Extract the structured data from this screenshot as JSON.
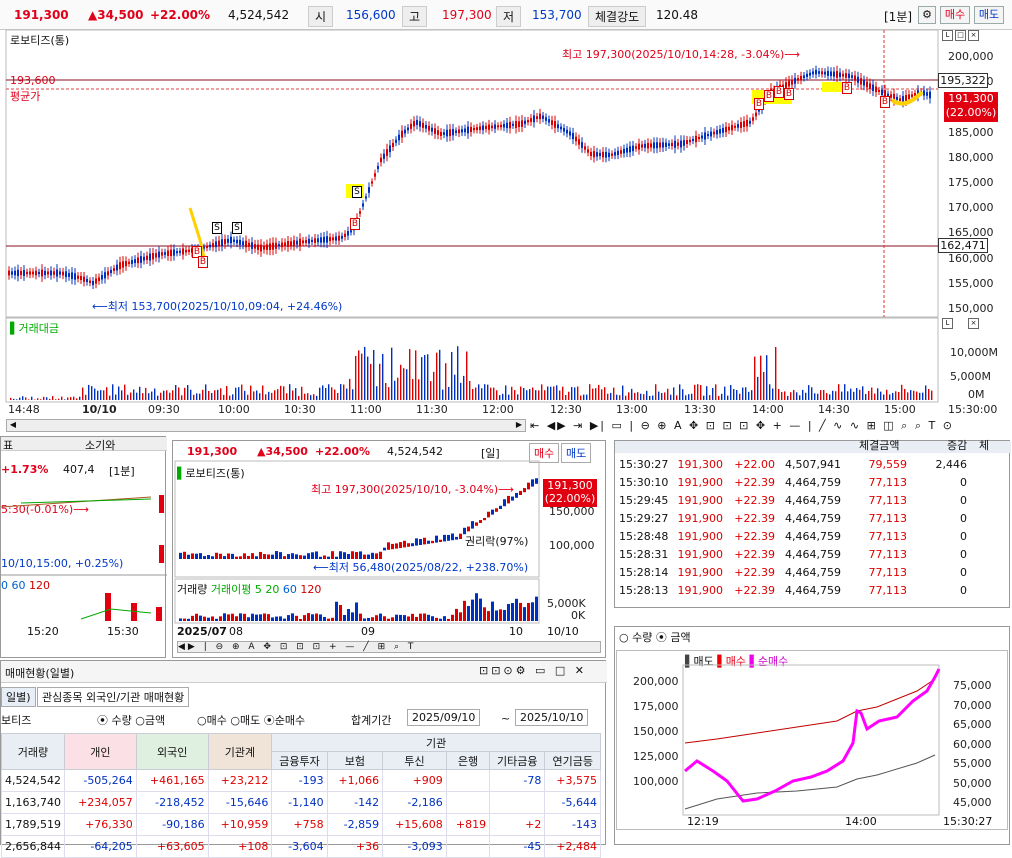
{
  "top": {
    "price": "191,300",
    "change": "▲34,500",
    "rate": "+22.00%",
    "volume": "4,524,542",
    "open_lbl": "시",
    "open": "156,600",
    "high_lbl": "고",
    "high": "197,300",
    "low_lbl": "저",
    "low": "153,700",
    "str_lbl": "체결강도",
    "str": "120.48",
    "interval": "[1분]",
    "buy": "매수",
    "sell": "매도"
  },
  "main": {
    "title": "로보티즈(통)",
    "avg_line": "193,600",
    "avg_label": "평균가",
    "high_note": "최고 197,300(2025/10/10,14:28, -3.04%)⟶",
    "low_note": "⟵최저 153,700(2025/10/10,09:04, +24.46%)",
    "price_tag_a": "195,322",
    "price_tag_b": "162,471",
    "current_a": "191,300",
    "current_b": "(22.00%)",
    "yticks": [
      "200,000",
      "195,000",
      "190,000",
      "185,000",
      "180,000",
      "175,000",
      "170,000",
      "165,000",
      "160,000",
      "155,000",
      "150,000"
    ],
    "vol_title": "거래대금",
    "vol_ticks": [
      "10,000M",
      "5,000M",
      "0M"
    ],
    "xticks": [
      "14:48",
      "10/10",
      "09:30",
      "10:00",
      "10:30",
      "11:00",
      "11:30",
      "12:00",
      "12:30",
      "13:00",
      "13:30",
      "14:00",
      "14:30",
      "15:00",
      "15:30:00"
    ]
  },
  "left_mini": {
    "rate": "+1.73%",
    "vol": "407,4",
    "interval": "[1분]",
    "note1": "5:30(-0.01%)⟶",
    "note2": "10/10,15:00, +0.25%)",
    "leg1": "60",
    "leg2": "120",
    "x1": "15:20",
    "x2": "15:30",
    "hdr1": "표",
    "hdr2": "소기와"
  },
  "daily": {
    "price": "191,300",
    "change": "▲34,500",
    "rate": "+22.00%",
    "volume": "4,524,542",
    "interval": "[일]",
    "buy": "매수",
    "sell": "매도",
    "title": "로보티즈(통)",
    "high_note": "최고 197,300(2025/10/10, -3.04%)⟶",
    "low_note": "⟵최저 56,480(2025/08/22, +238.70%)",
    "rights": "권리락(97%)",
    "cur_a": "191,300",
    "cur_b": "(22.00%)",
    "y1": "150,000",
    "y2": "100,000",
    "vol_title": "거래량",
    "vol_avg": "거래이평 5",
    "l1": "20",
    "l2": "60",
    "l3": "120",
    "vtick1": "5,000K",
    "vtick2": "0K",
    "x0": "2025/07",
    "x1": "08",
    "x2": "09",
    "x3": "10",
    "x4": "10/10"
  },
  "ticks": {
    "hdr": [
      "",
      "",
      "",
      "",
      "체결금액",
      "증감",
      "체"
    ],
    "rows": [
      [
        "15:30:27",
        "191,300",
        "+22.00",
        "4,507,941",
        "79,559",
        "2,446"
      ],
      [
        "15:30:10",
        "191,900",
        "+22.39",
        "4,464,759",
        "77,113",
        "0"
      ],
      [
        "15:29:45",
        "191,900",
        "+22.39",
        "4,464,759",
        "77,113",
        "0"
      ],
      [
        "15:29:27",
        "191,900",
        "+22.39",
        "4,464,759",
        "77,113",
        "0"
      ],
      [
        "15:28:48",
        "191,900",
        "+22.39",
        "4,464,759",
        "77,113",
        "0"
      ],
      [
        "15:28:31",
        "191,900",
        "+22.39",
        "4,464,759",
        "77,113",
        "0"
      ],
      [
        "15:28:14",
        "191,900",
        "+22.39",
        "4,464,759",
        "77,113",
        "0"
      ],
      [
        "15:28:13",
        "191,900",
        "+22.39",
        "4,464,759",
        "77,113",
        "0"
      ]
    ]
  },
  "invest": {
    "title": "매매현황(일별)",
    "tab1": "일별)",
    "tab2": "관심종목 외국인/기관 매매현황",
    "name": "보티즈",
    "r_qty": "수량",
    "r_amt": "금액",
    "r_buy": "매수",
    "r_sell": "매도",
    "r_net": "순매수",
    "period": "합계기간",
    "from": "2025/09/10",
    "to": "2025/10/10",
    "cols": [
      "거래량",
      "개인",
      "외국인",
      "기관계",
      "기관",
      "금융투자",
      "보험",
      "투신",
      "은행",
      "기타금융",
      "연기금등"
    ],
    "rows": [
      [
        "4,524,542",
        "-505,264",
        "+461,165",
        "+23,212",
        "-193",
        "+1,066",
        "+909",
        "",
        "-78",
        "+3,575"
      ],
      [
        "1,163,740",
        "+234,057",
        "-218,452",
        "-15,646",
        "-1,140",
        "-142",
        "-2,186",
        "",
        "",
        "-5,644"
      ],
      [
        "1,789,519",
        "+76,330",
        "-90,186",
        "+10,959",
        "+758",
        "-2,859",
        "+15,608",
        "+819",
        "+2",
        "-143"
      ],
      [
        "2,656,844",
        "-64,205",
        "+63,605",
        "+108",
        "-3,604",
        "+36",
        "-3,093",
        "",
        "-45",
        "+2,484"
      ]
    ]
  },
  "flow": {
    "r_qty": "수량",
    "r_amt": "금액",
    "leg_sell": "매도",
    "leg_buy": "매수",
    "leg_net": "순매수",
    "yl": [
      "200,000",
      "175,000",
      "150,000",
      "125,000",
      "100,000"
    ],
    "yr": [
      "75,000",
      "70,000",
      "65,000",
      "60,000",
      "55,000",
      "50,000",
      "45,000"
    ],
    "x1": "12:19",
    "x2": "14:00",
    "x3": "15:30:27"
  }
}
